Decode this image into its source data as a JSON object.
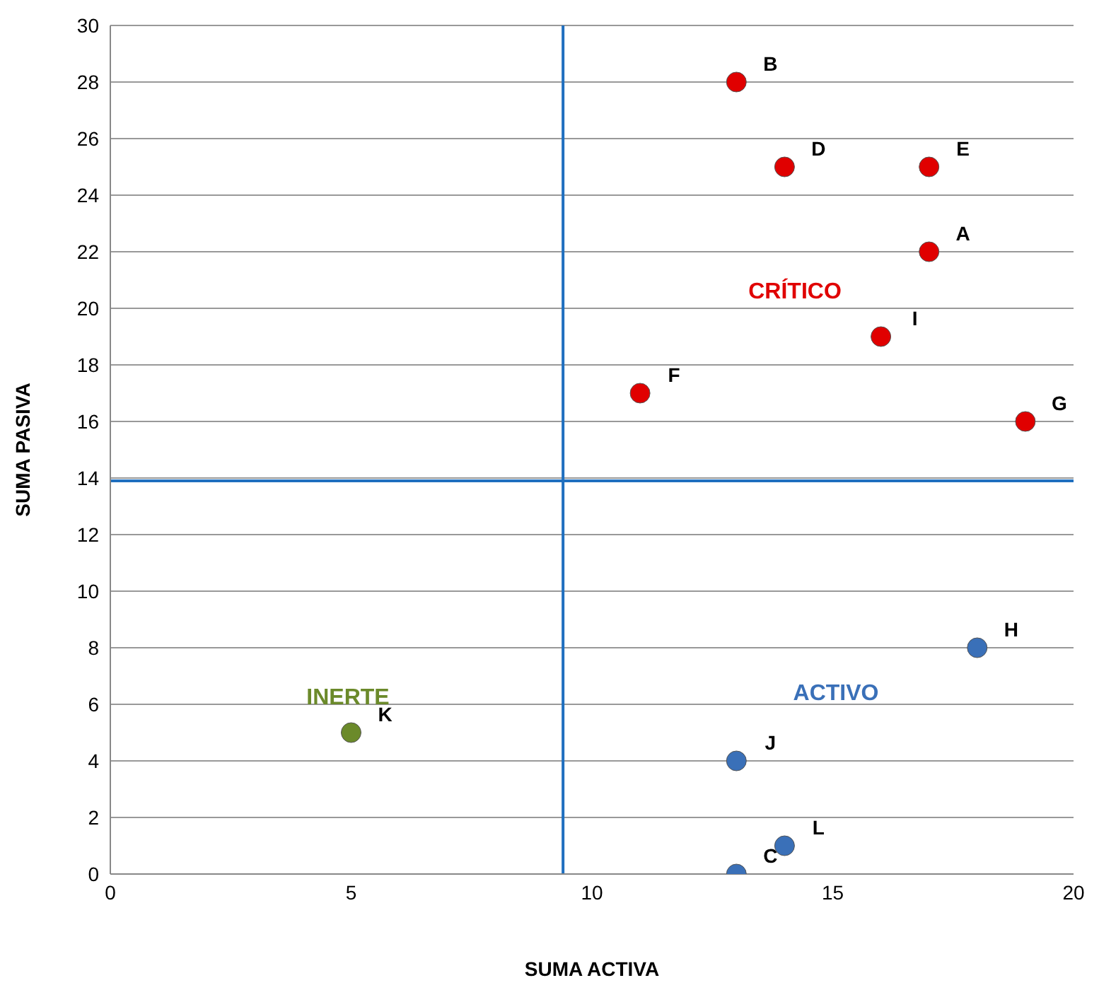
{
  "chart_data": {
    "type": "scatter",
    "xlabel": "SUMA ACTIVA",
    "ylabel": "SUMA PASIVA",
    "series": [
      {
        "color": "#e00000",
        "x": [
          17,
          13,
          14,
          17,
          11,
          19,
          16
        ],
        "values": [
          22,
          28,
          25,
          25,
          17,
          16,
          19
        ],
        "value_labels": [
          "A",
          "B",
          "D",
          "E",
          "F",
          "G",
          "I"
        ]
      },
      {
        "color": "#3a70b8",
        "x": [
          13,
          18,
          13,
          14
        ],
        "values": [
          0,
          8,
          4,
          1
        ],
        "value_labels": [
          "C",
          "H",
          "J",
          "L"
        ]
      },
      {
        "color": "#6b8a2a",
        "x": [
          5
        ],
        "values": [
          5
        ],
        "value_labels": [
          "K"
        ]
      }
    ],
    "annotations": [
      "CRÍTICO",
      "ACTIVO",
      "INERTE"
    ],
    "ref_lines": [
      {
        "axis": "x",
        "value": 9.4,
        "color": "#1f6fbf"
      },
      {
        "axis": "y",
        "value": 13.9,
        "color": "#1f6fbf"
      }
    ],
    "xlim": [
      0,
      20
    ],
    "xticks": [
      0,
      5,
      10,
      15,
      20
    ],
    "ylim": [
      0,
      30
    ],
    "yticks": [
      0,
      2,
      4,
      6,
      8,
      10,
      12,
      14,
      16,
      18,
      20,
      22,
      24,
      26,
      28,
      30
    ],
    "grid": "y",
    "marker": "circle",
    "legend": false
  }
}
